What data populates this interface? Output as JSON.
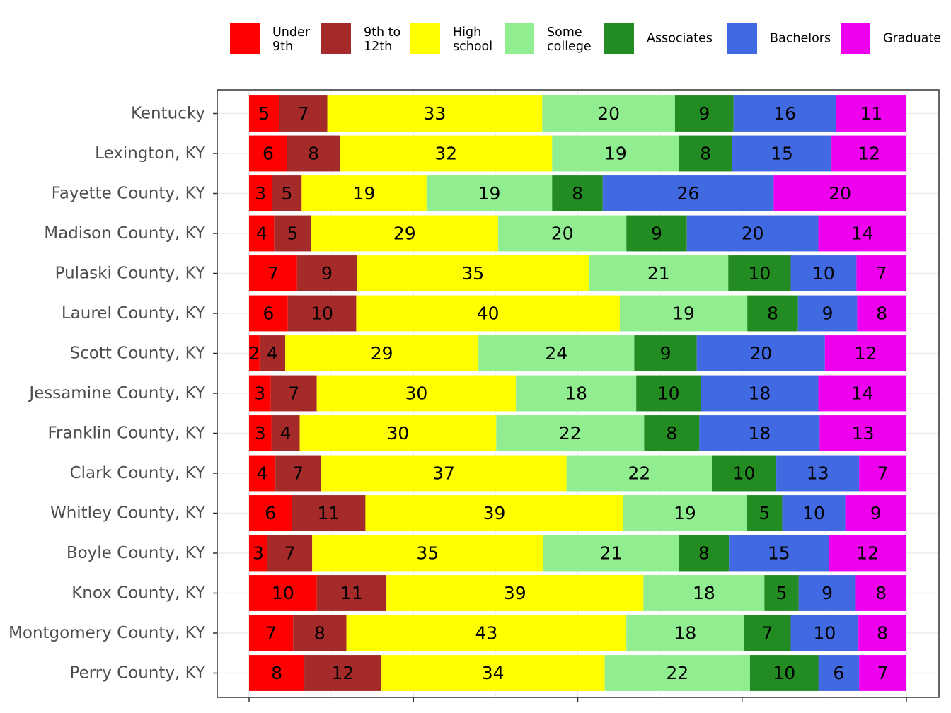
{
  "chart_data": {
    "type": "bar",
    "orientation": "horizontal",
    "stacked": true,
    "percent": true,
    "grid": true,
    "legend_position": "top",
    "xlim": [
      0,
      100
    ],
    "categories": [
      "Kentucky",
      "Lexington, KY",
      "Fayette County, KY",
      "Madison County, KY",
      "Pulaski County, KY",
      "Laurel County, KY",
      "Scott County, KY",
      "Jessamine County, KY",
      "Franklin County, KY",
      "Clark County, KY",
      "Whitley County, KY",
      "Boyle County, KY",
      "Knox County, KY",
      "Montgomery County, KY",
      "Perry County, KY"
    ],
    "series": [
      {
        "name": [
          "Under",
          "9th"
        ],
        "color": "#ff0000",
        "values": [
          5,
          6,
          3,
          4,
          7,
          6,
          2,
          3,
          3,
          4,
          6,
          3,
          10,
          7,
          8
        ],
        "widths": [
          4.6,
          5.8,
          3.5,
          3.8,
          7.3,
          5.9,
          1.6,
          3.3,
          3.4,
          4.0,
          6.5,
          2.8,
          10.3,
          6.7,
          8.4
        ]
      },
      {
        "name": [
          "9th to",
          "12th"
        ],
        "color": "#a52a2a",
        "values": [
          7,
          8,
          5,
          5,
          9,
          10,
          4,
          7,
          4,
          7,
          11,
          7,
          11,
          8,
          12
        ],
        "widths": [
          7.3,
          8.0,
          4.5,
          5.6,
          9.1,
          10.4,
          3.9,
          7.0,
          4.3,
          6.9,
          11.2,
          6.8,
          10.6,
          8.1,
          11.7
        ]
      },
      {
        "name": [
          "High",
          "school"
        ],
        "color": "#ffff00",
        "values": [
          33,
          32,
          19,
          29,
          35,
          40,
          29,
          30,
          30,
          37,
          39,
          35,
          39,
          43,
          34
        ],
        "widths": [
          32.7,
          32.3,
          19.0,
          28.5,
          35.3,
          40.1,
          29.4,
          30.3,
          29.9,
          37.4,
          39.2,
          35.1,
          39.1,
          42.6,
          34.0
        ]
      },
      {
        "name": [
          "Some",
          "college"
        ],
        "color": "#90ee90",
        "values": [
          20,
          19,
          19,
          20,
          21,
          19,
          24,
          18,
          22,
          22,
          19,
          21,
          18,
          18,
          22
        ],
        "widths": [
          20.2,
          19.3,
          19.1,
          19.5,
          21.2,
          19.4,
          23.7,
          18.3,
          22.5,
          22.1,
          18.8,
          20.7,
          18.4,
          17.9,
          22.1
        ]
      },
      {
        "name": [
          "Associates"
        ],
        "color": "#228b22",
        "values": [
          9,
          8,
          8,
          9,
          10,
          8,
          9,
          10,
          8,
          10,
          5,
          8,
          5,
          7,
          10
        ],
        "widths": [
          8.9,
          8.1,
          7.7,
          9.2,
          9.5,
          7.7,
          9.5,
          9.8,
          8.4,
          9.8,
          5.4,
          7.6,
          5.2,
          7.1,
          10.4
        ]
      },
      {
        "name": [
          "Bachelors"
        ],
        "color": "#4169e1",
        "values": [
          16,
          15,
          26,
          20,
          10,
          9,
          20,
          18,
          18,
          13,
          10,
          15,
          9,
          10,
          6
        ],
        "widths": [
          15.6,
          15.1,
          26.0,
          20.0,
          10.0,
          9.0,
          19.5,
          17.9,
          18.3,
          12.6,
          9.6,
          15.2,
          8.7,
          10.3,
          6.2
        ]
      },
      {
        "name": [
          "Graduate"
        ],
        "color": "#ee00ee",
        "values": [
          11,
          12,
          20,
          14,
          7,
          8,
          12,
          14,
          13,
          7,
          9,
          12,
          8,
          8,
          7
        ],
        "widths": [
          10.7,
          11.4,
          20.2,
          13.4,
          7.6,
          7.5,
          12.4,
          13.4,
          13.2,
          7.2,
          9.3,
          11.8,
          7.7,
          7.3,
          7.2
        ]
      }
    ]
  }
}
